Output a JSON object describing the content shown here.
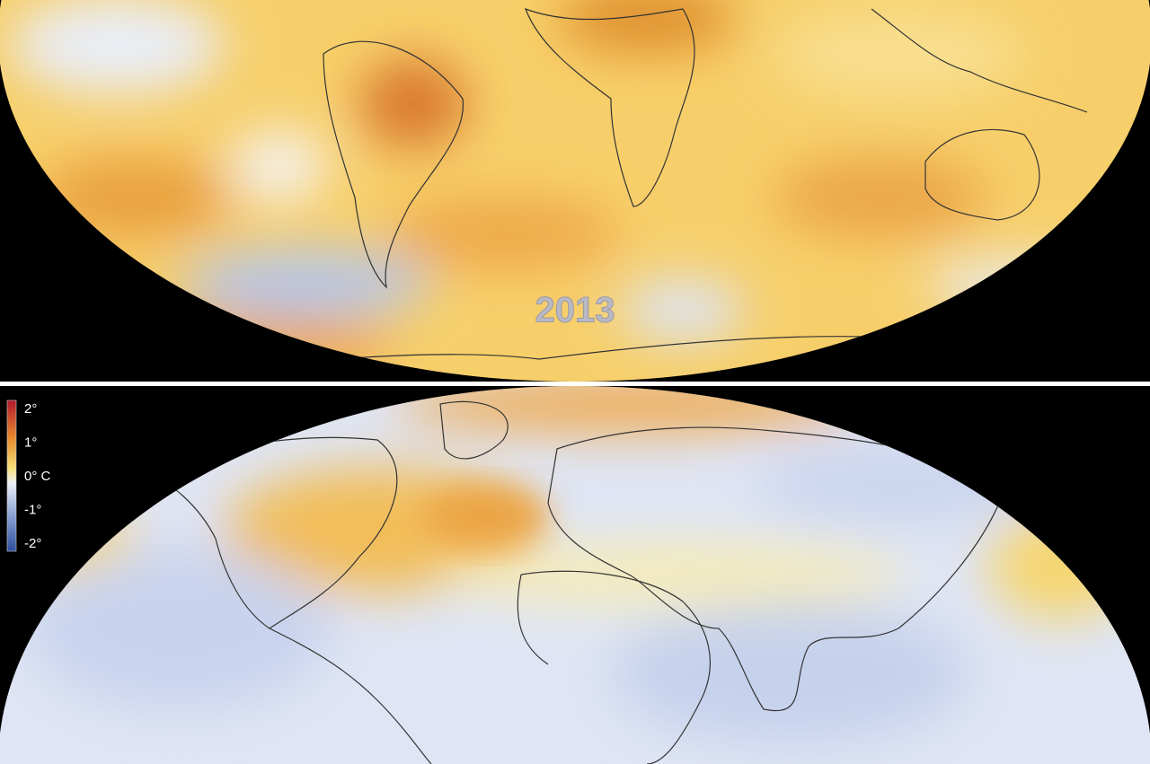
{
  "top_map": {
    "year_label": "2013"
  },
  "bottom_map": {
    "legend": {
      "labels": [
        "2°",
        "1°",
        "0° C",
        "-1°",
        "-2°"
      ]
    }
  }
}
